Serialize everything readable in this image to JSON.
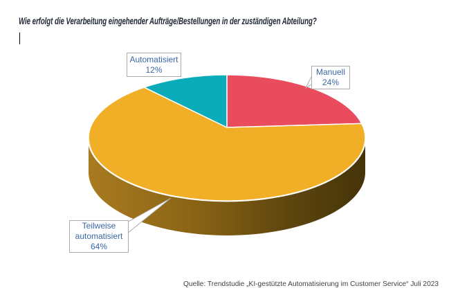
{
  "title": "Wie erfolgt die Verarbeitung eingehender Aufträge/Bestellungen in der zuständigen Abteilung?",
  "source": "Quelle: Trendstudie „KI-gestützte Automatisierung im Customer Service“ Juli 2023",
  "chart_data": {
    "type": "pie",
    "style": "3d",
    "title": "Wie erfolgt die Verarbeitung eingehender Aufträge/Bestellungen in der zuständigen Abteilung?",
    "unit": "%",
    "start_angle_deg": 0,
    "direction": "clockwise",
    "legend": "none",
    "labels_style": "callout-boxes",
    "slices": [
      {
        "label": "Manuell",
        "value": 24,
        "color": "#E84C5D"
      },
      {
        "label": "Teilweise automatisiert",
        "value": 64,
        "color": "#F0AF26"
      },
      {
        "label": "Automatisiert",
        "value": 12,
        "color": "#0BACB9"
      }
    ]
  },
  "callouts": {
    "automatisiert": {
      "lines": [
        "Automatisiert",
        "12%"
      ]
    },
    "manuell": {
      "lines": [
        "Manuell",
        "24%"
      ]
    },
    "teilweise": {
      "lines": [
        "Teilweise",
        "automatisiert",
        "64%"
      ]
    }
  },
  "colors": {
    "title_text": "#1F2733",
    "label_text": "#3A67A5",
    "box_border": "#ABABAB",
    "source_text": "#404040",
    "slice_separator": "#FFFFFF",
    "side_gradient": [
      "#A97B20",
      "#8A6415",
      "#5E460E",
      "#453409"
    ]
  }
}
